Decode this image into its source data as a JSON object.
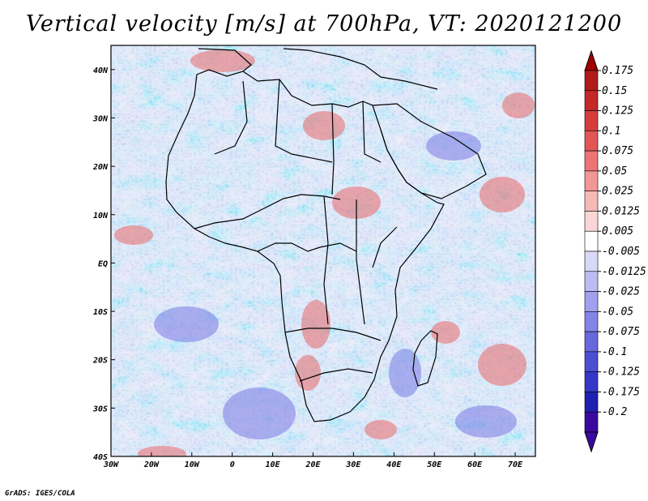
{
  "title": "Vertical velocity [m/s] at 700hPa, VT: 2020121200",
  "credit": "GrADS: IGES/COLA",
  "map": {
    "lon_range": [
      -30,
      75
    ],
    "lat_range": [
      -40,
      45
    ],
    "lat_ticks": [
      {
        "value": 40,
        "label": "40N"
      },
      {
        "value": 30,
        "label": "30N"
      },
      {
        "value": 20,
        "label": "20N"
      },
      {
        "value": 10,
        "label": "10N"
      },
      {
        "value": 0,
        "label": "EQ"
      },
      {
        "value": -10,
        "label": "10S"
      },
      {
        "value": -20,
        "label": "20S"
      },
      {
        "value": -30,
        "label": "30S"
      },
      {
        "value": -40,
        "label": "40S"
      }
    ],
    "lon_ticks": [
      {
        "value": -30,
        "label": "30W"
      },
      {
        "value": -20,
        "label": "20W"
      },
      {
        "value": -10,
        "label": "10W"
      },
      {
        "value": 0,
        "label": "0"
      },
      {
        "value": 10,
        "label": "10E"
      },
      {
        "value": 20,
        "label": "20E"
      },
      {
        "value": 30,
        "label": "30E"
      },
      {
        "value": 40,
        "label": "40E"
      },
      {
        "value": 50,
        "label": "50E"
      },
      {
        "value": 60,
        "label": "60E"
      },
      {
        "value": 70,
        "label": "70E"
      }
    ],
    "field_bias": "mostly weak sinking (blue) over oceans with scattered rising (red) patches over land",
    "colors_note": "red = upward/positive, blue = downward/negative"
  },
  "colorbar": {
    "levels": [
      {
        "label": "0.175",
        "color": "#b01a1a"
      },
      {
        "label": "0.15",
        "color": "#c42828"
      },
      {
        "label": "0.125",
        "color": "#d63c3c"
      },
      {
        "label": "0.1",
        "color": "#e25656"
      },
      {
        "label": "0.075",
        "color": "#ec7474"
      },
      {
        "label": "0.05",
        "color": "#f29696"
      },
      {
        "label": "0.025",
        "color": "#f7b8b8"
      },
      {
        "label": "0.0125",
        "color": "#fbd6d6"
      },
      {
        "label": "0.005",
        "color": "#ffffff"
      },
      {
        "label": "-0.005",
        "color": "#d8d8f8"
      },
      {
        "label": "-0.0125",
        "color": "#bcbcf4"
      },
      {
        "label": "-0.025",
        "color": "#a0a0ee"
      },
      {
        "label": "-0.05",
        "color": "#8484e6"
      },
      {
        "label": "-0.075",
        "color": "#6868de"
      },
      {
        "label": "-0.1",
        "color": "#4e4ed4"
      },
      {
        "label": "-0.125",
        "color": "#3636c8"
      },
      {
        "label": "-0.175",
        "color": "#2020b0"
      },
      {
        "label": "-0.2",
        "color": "#3a0aa0"
      }
    ],
    "top_arrow_color": "#a00000",
    "bottom_arrow_color": "#3a0aa0"
  }
}
